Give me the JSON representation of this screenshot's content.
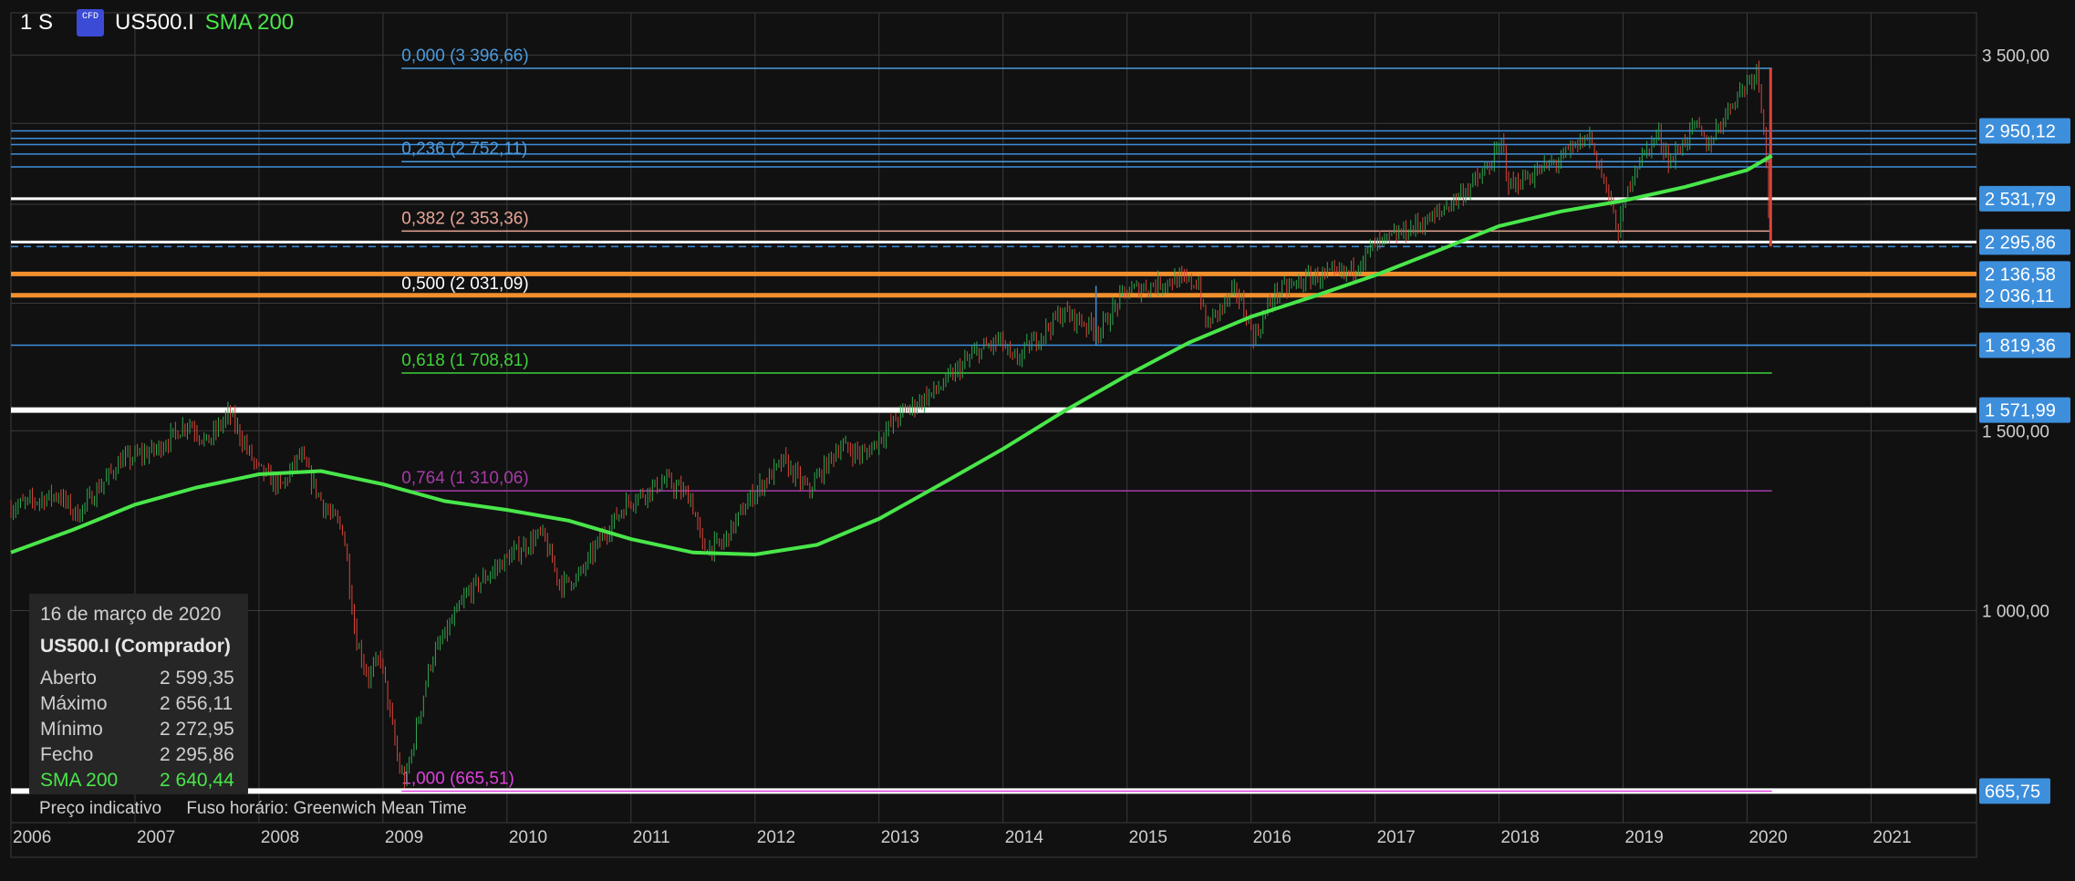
{
  "header": {
    "timeframe": "1 S",
    "cfd_badge": "CFD",
    "symbol": "US500.I",
    "indicator": "SMA 200"
  },
  "colors": {
    "background": "#111111",
    "grid": "#3a3a3a",
    "up_candle": "#2fa84f",
    "down_candle": "#d9453a",
    "sma": "#49e64a",
    "fib_blue": "#4a9be0",
    "fib_salmon": "#e8a596",
    "fib_white": "#ffffff",
    "fib_green": "#3ed13a",
    "fib_purple": "#a63aa8",
    "fib_magenta": "#e03fe0",
    "orange_line": "#f0902e",
    "label_bg": "#3d8fdc"
  },
  "chart_data": {
    "type": "candlestick",
    "instrument": "US500.I",
    "interval": "1 S",
    "scale": "log",
    "x_labels": [
      "2006",
      "2007",
      "2008",
      "2009",
      "2010",
      "2011",
      "2012",
      "2013",
      "2014",
      "2015",
      "2016",
      "2017",
      "2018",
      "2019",
      "2020",
      "2021"
    ],
    "xlim": [
      2006.0,
      2021.85
    ],
    "ylim": [
      620,
      3850
    ],
    "y_ticks": [
      {
        "value": 3500,
        "label": "3 500,00"
      },
      {
        "value": 1500,
        "label": "1 500,00"
      },
      {
        "value": 1000,
        "label": "1 000,00"
      }
    ],
    "price_path": [
      [
        2006.0,
        1260
      ],
      [
        2006.4,
        1300
      ],
      [
        2006.55,
        1240
      ],
      [
        2006.9,
        1400
      ],
      [
        2007.2,
        1440
      ],
      [
        2007.45,
        1530
      ],
      [
        2007.6,
        1460
      ],
      [
        2007.78,
        1560
      ],
      [
        2008.0,
        1380
      ],
      [
        2008.2,
        1320
      ],
      [
        2008.35,
        1420
      ],
      [
        2008.55,
        1260
      ],
      [
        2008.7,
        1200
      ],
      [
        2008.8,
        940
      ],
      [
        2008.9,
        860
      ],
      [
        2009.0,
        900
      ],
      [
        2009.15,
        700
      ],
      [
        2009.2,
        680
      ],
      [
        2009.4,
        890
      ],
      [
        2009.7,
        1040
      ],
      [
        2010.0,
        1120
      ],
      [
        2010.3,
        1190
      ],
      [
        2010.45,
        1060
      ],
      [
        2010.6,
        1080
      ],
      [
        2010.8,
        1190
      ],
      [
        2011.0,
        1280
      ],
      [
        2011.3,
        1340
      ],
      [
        2011.5,
        1290
      ],
      [
        2011.6,
        1150
      ],
      [
        2011.75,
        1160
      ],
      [
        2012.0,
        1300
      ],
      [
        2012.25,
        1400
      ],
      [
        2012.45,
        1310
      ],
      [
        2012.7,
        1450
      ],
      [
        2012.9,
        1420
      ],
      [
        2013.2,
        1560
      ],
      [
        2013.5,
        1650
      ],
      [
        2013.8,
        1790
      ],
      [
        2014.0,
        1840
      ],
      [
        2014.1,
        1750
      ],
      [
        2014.5,
        1960
      ],
      [
        2014.8,
        1880
      ],
      [
        2015.0,
        2050
      ],
      [
        2015.4,
        2110
      ],
      [
        2015.6,
        2090
      ],
      [
        2015.65,
        1900
      ],
      [
        2015.9,
        2060
      ],
      [
        2016.05,
        1850
      ],
      [
        2016.2,
        2040
      ],
      [
        2016.5,
        2120
      ],
      [
        2016.8,
        2140
      ],
      [
        2017.0,
        2270
      ],
      [
        2017.5,
        2430
      ],
      [
        2017.9,
        2680
      ],
      [
        2018.05,
        2870
      ],
      [
        2018.1,
        2600
      ],
      [
        2018.5,
        2760
      ],
      [
        2018.75,
        2920
      ],
      [
        2018.9,
        2550
      ],
      [
        2018.98,
        2350
      ],
      [
        2019.1,
        2700
      ],
      [
        2019.3,
        2930
      ],
      [
        2019.4,
        2750
      ],
      [
        2019.6,
        2990
      ],
      [
        2019.7,
        2850
      ],
      [
        2019.9,
        3150
      ],
      [
        2020.1,
        3396
      ],
      [
        2020.15,
        3030
      ],
      [
        2020.18,
        2700
      ],
      [
        2020.2,
        2296
      ]
    ],
    "last_candle": {
      "date": "16 de março de 2020",
      "open": 2599.35,
      "high": 2656.11,
      "low": 2272.95,
      "close": 2295.86
    },
    "sma_200_path": [
      [
        2006.0,
        1140
      ],
      [
        2006.5,
        1200
      ],
      [
        2007.0,
        1270
      ],
      [
        2007.5,
        1320
      ],
      [
        2008.0,
        1360
      ],
      [
        2008.5,
        1370
      ],
      [
        2009.0,
        1330
      ],
      [
        2009.5,
        1280
      ],
      [
        2010.0,
        1255
      ],
      [
        2010.5,
        1225
      ],
      [
        2011.0,
        1175
      ],
      [
        2011.5,
        1140
      ],
      [
        2012.0,
        1135
      ],
      [
        2012.5,
        1160
      ],
      [
        2013.0,
        1230
      ],
      [
        2013.5,
        1330
      ],
      [
        2014.0,
        1440
      ],
      [
        2014.5,
        1570
      ],
      [
        2015.0,
        1700
      ],
      [
        2015.5,
        1830
      ],
      [
        2016.0,
        1940
      ],
      [
        2016.5,
        2030
      ],
      [
        2017.0,
        2130
      ],
      [
        2017.5,
        2250
      ],
      [
        2018.0,
        2380
      ],
      [
        2018.5,
        2460
      ],
      [
        2019.0,
        2520
      ],
      [
        2019.5,
        2600
      ],
      [
        2020.0,
        2700
      ],
      [
        2020.2,
        2790
      ]
    ],
    "fibonacci": [
      {
        "level": "0,000",
        "price": 3396.66,
        "label": "0,000 (3 396,66)",
        "color_key": "fib_blue"
      },
      {
        "level": "0,236",
        "price": 2752.11,
        "label": "0,236 (2 752,11)",
        "color_key": "fib_blue"
      },
      {
        "level": "0,382",
        "price": 2353.36,
        "label": "0,382 (2 353,36)",
        "color_key": "fib_salmon"
      },
      {
        "level": "0,500",
        "price": 2031.09,
        "label": "0,500 (2 031,09)",
        "color_key": "fib_white"
      },
      {
        "level": "0,618",
        "price": 1708.81,
        "label": "0,618 (1 708,81)",
        "color_key": "fib_green"
      },
      {
        "level": "0,764",
        "price": 1310.06,
        "label": "0,764 (1 310,06)",
        "color_key": "fib_purple"
      },
      {
        "level": "1,000",
        "price": 665.51,
        "label": "1,000 (665,51)",
        "color_key": "fib_magenta"
      }
    ],
    "horizontal_lines": [
      {
        "price": 2950.12,
        "color_key": "label_bg",
        "width": 1.5
      },
      {
        "price": 2900,
        "color_key": "label_bg",
        "width": 1.5
      },
      {
        "price": 2860,
        "color_key": "label_bg",
        "width": 1.5
      },
      {
        "price": 2800,
        "color_key": "label_bg",
        "width": 1.5
      },
      {
        "price": 2720,
        "color_key": "label_bg",
        "width": 1.5
      },
      {
        "price": 2531.79,
        "color_key": "fib_white",
        "width": 3
      },
      {
        "price": 2295.86,
        "color_key": "fib_white",
        "width": 3
      },
      {
        "price": 2136.58,
        "color_key": "orange_line",
        "width": 5
      },
      {
        "price": 2036.11,
        "color_key": "orange_line",
        "width": 5
      },
      {
        "price": 1819.36,
        "color_key": "label_bg",
        "width": 1.5
      },
      {
        "price": 1571.99,
        "color_key": "fib_white",
        "width": 6
      },
      {
        "price": 665.75,
        "color_key": "fib_white",
        "width": 6
      }
    ],
    "price_labels": [
      {
        "price": 2950.12,
        "text": "2 950,12"
      },
      {
        "price": 2531.79,
        "text": "2 531,79"
      },
      {
        "price": 2295.86,
        "text": "2 295,86"
      },
      {
        "price": 2136.58,
        "text": "2 136,58"
      },
      {
        "price": 2036.11,
        "text": "2 036,11"
      },
      {
        "price": 1819.36,
        "text": "1 819,36"
      },
      {
        "price": 1571.99,
        "text": "1 571,99"
      },
      {
        "price": 665.75,
        "text": "665,75"
      }
    ]
  },
  "infobox": {
    "date": "16 de março de 2020",
    "instrument": "US500.I (Comprador)",
    "rows": [
      {
        "key": "Aberto",
        "value": "2 599,35"
      },
      {
        "key": "Máximo",
        "value": "2 656,11"
      },
      {
        "key": "Mínimo",
        "value": "2 272,95"
      },
      {
        "key": "Fecho",
        "value": "2 295,86"
      }
    ],
    "sma_key": "SMA 200",
    "sma_value": "2 640,44"
  },
  "footnote": {
    "indicative": "Preço indicativo",
    "timezone": "Fuso horário: Greenwich Mean Time"
  }
}
